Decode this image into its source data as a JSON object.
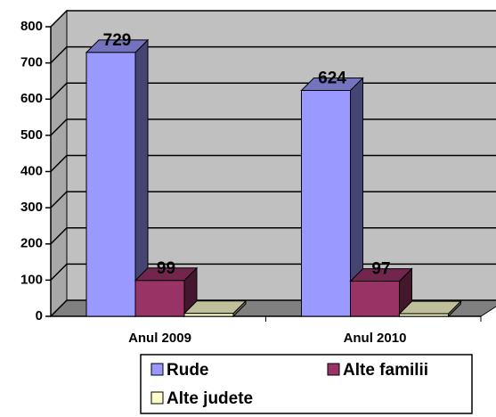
{
  "chart_data": {
    "type": "bar3d",
    "categories": [
      "Anul 2009",
      "Anul 2010"
    ],
    "series": [
      {
        "name": "Rude",
        "color": "#9999ff",
        "values": [
          729,
          624
        ],
        "show_labels": true
      },
      {
        "name": "Alte familii",
        "color": "#993366",
        "values": [
          99,
          97
        ],
        "show_labels": true
      },
      {
        "name": "Alte judete",
        "color": "#ffffcc",
        "values": [
          8,
          7
        ],
        "show_labels": false
      }
    ],
    "ylim": [
      0,
      800
    ],
    "yticks": [
      0,
      100,
      200,
      300,
      400,
      500,
      600,
      700,
      800
    ],
    "grid": true
  }
}
